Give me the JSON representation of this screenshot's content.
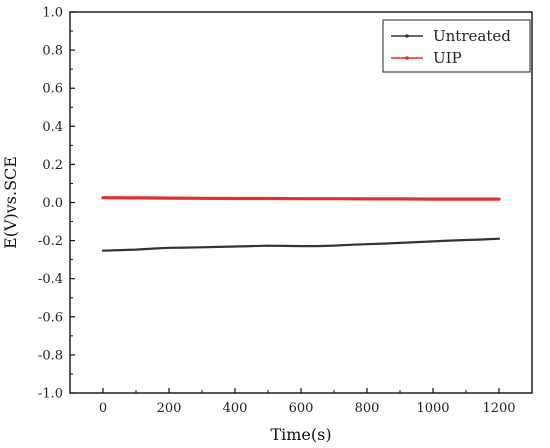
{
  "chart_data": {
    "type": "line",
    "xlabel": "Time(s)",
    "ylabel": "E(V)vs.SCE",
    "xlim": [
      -100,
      1300
    ],
    "ylim": [
      -1.0,
      1.0
    ],
    "xticks": [
      0,
      200,
      400,
      600,
      800,
      1000,
      1200
    ],
    "yticks": [
      -1.0,
      -0.8,
      -0.6,
      -0.4,
      -0.2,
      0.0,
      0.2,
      0.4,
      0.6,
      0.8,
      1.0
    ],
    "x_tick_labels": [
      "0",
      "200",
      "400",
      "600",
      "800",
      "1000",
      "1200"
    ],
    "y_tick_labels": [
      "-1.0",
      "-0.8",
      "-0.6",
      "-0.4",
      "-0.2",
      "0.0",
      "0.2",
      "0.4",
      "0.6",
      "0.8",
      "1.0"
    ],
    "grid": false,
    "legend_position": "top-right",
    "series": [
      {
        "name": "Untreated",
        "color": "#333333",
        "x": [
          0,
          50,
          100,
          150,
          200,
          250,
          300,
          350,
          400,
          450,
          500,
          550,
          600,
          650,
          700,
          750,
          800,
          850,
          900,
          950,
          1000,
          1050,
          1100,
          1150,
          1200
        ],
        "y": [
          -0.253,
          -0.25,
          -0.247,
          -0.242,
          -0.238,
          -0.237,
          -0.235,
          -0.233,
          -0.231,
          -0.229,
          -0.227,
          -0.228,
          -0.229,
          -0.229,
          -0.226,
          -0.222,
          -0.219,
          -0.216,
          -0.212,
          -0.208,
          -0.204,
          -0.2,
          -0.197,
          -0.194,
          -0.19
        ]
      },
      {
        "name": "UIP",
        "color": "#e03030",
        "x": [
          0,
          100,
          200,
          300,
          400,
          500,
          600,
          700,
          800,
          900,
          1000,
          1100,
          1200
        ],
        "y": [
          0.025,
          0.024,
          0.023,
          0.022,
          0.021,
          0.021,
          0.02,
          0.02,
          0.019,
          0.019,
          0.018,
          0.018,
          0.018
        ]
      }
    ]
  }
}
